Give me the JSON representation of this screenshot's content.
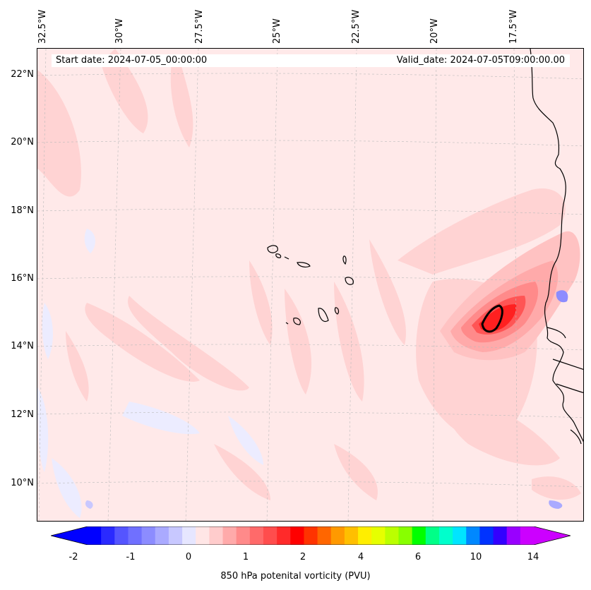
{
  "map": {
    "title_start": "Start date: 2024-07-05_00:00:00",
    "title_valid": "Valid_date: 2024-07-05T09:00:00.00",
    "longitude_labels": [
      "32.5°W",
      "30°W",
      "27.5°W",
      "25°W",
      "22.5°W",
      "20°W",
      "17.5°W"
    ],
    "latitude_labels": [
      "22°N",
      "20°N",
      "18°N",
      "16°N",
      "14°N",
      "12°N",
      "10°N"
    ],
    "region": "Cape Verde Islands and West African coast"
  },
  "colorbar": {
    "label": "850 hPa potenital vorticity (PVU)",
    "tick_labels": [
      "-2",
      "-1",
      "0",
      "1",
      "2",
      "4",
      "6",
      "10",
      "14"
    ],
    "colors": [
      "#0000ff",
      "#2a2aff",
      "#5555ff",
      "#7070ff",
      "#8c8cff",
      "#aaaaff",
      "#c8c8ff",
      "#e6e6ff",
      "#ffe6e6",
      "#ffcccc",
      "#ffaaaa",
      "#ff8a8a",
      "#ff6a6a",
      "#ff4d4d",
      "#ff2a2a",
      "#ff0000",
      "#ff3300",
      "#ff6600",
      "#ff9900",
      "#ffbf00",
      "#ffee00",
      "#e6ff00",
      "#bbff00",
      "#88ff00",
      "#00ff00",
      "#00ff88",
      "#00ffcc",
      "#00e5ff",
      "#0088ff",
      "#0033ff",
      "#3300ff",
      "#9900ff",
      "#cc00ff"
    ],
    "extend_low_color": "#0000ff",
    "extend_high_color": "#cc00ff"
  }
}
